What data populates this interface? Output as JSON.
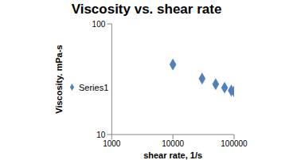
{
  "chart_data": {
    "type": "scatter",
    "title": "Viscosity vs. shear rate",
    "x_label": "shear rate, 1/s",
    "y_label": "Viscosity. mPa-s",
    "series": [
      {
        "name": "Series1",
        "color": "#4f81bd",
        "marker": "diamond",
        "x": [
          10000,
          30000,
          50000,
          70000,
          90000,
          100000
        ],
        "values": [
          43,
          32,
          28.5,
          26.5,
          25,
          24.5
        ]
      }
    ],
    "xlim": [
      1000,
      100000
    ],
    "xticks": [
      1000,
      10000,
      100000
    ],
    "ylim": [
      10,
      100
    ],
    "yticks": [
      10,
      100
    ],
    "log": true,
    "grid": false,
    "legend": "left"
  }
}
